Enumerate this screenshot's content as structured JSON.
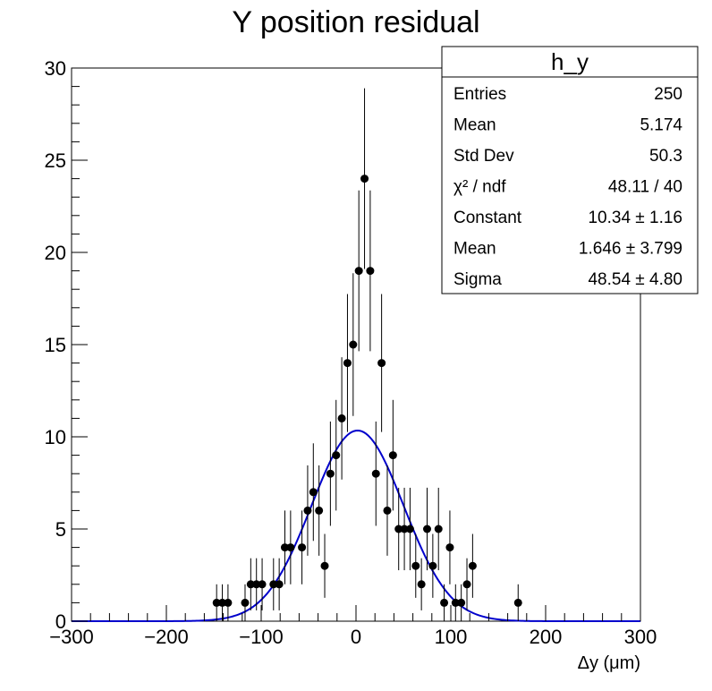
{
  "chart_data": {
    "type": "scatter",
    "title": "Y position residual",
    "xlabel": "Δy (μm)",
    "ylabel": "",
    "xlim": [
      -300,
      300
    ],
    "ylim": [
      0,
      30
    ],
    "x_ticks": [
      -300,
      -200,
      -100,
      0,
      100,
      200,
      300
    ],
    "x_tick_labels": [
      "−300",
      "−200",
      "−100",
      "0",
      "100",
      "200",
      "300"
    ],
    "y_ticks": [
      0,
      5,
      10,
      15,
      20,
      25,
      30
    ],
    "y_tick_labels": [
      "0",
      "5",
      "10",
      "15",
      "20",
      "25",
      "30"
    ],
    "grid": false,
    "legend": "none",
    "colors": {
      "points": "#000000",
      "fit": "#0000cc",
      "frame": "#000000"
    },
    "series": [
      {
        "kind": "points-with-errors",
        "x": [
          -147,
          -141,
          -135,
          -117,
          -111,
          -105,
          -99,
          -87,
          -81,
          -75,
          -69,
          -57,
          -51,
          -45,
          -39,
          -33,
          -27,
          -21,
          -15,
          -9,
          -3,
          3,
          9,
          15,
          21,
          27,
          33,
          39,
          45,
          51,
          57,
          63,
          69,
          75,
          81,
          87,
          93,
          99,
          105,
          111,
          117,
          123,
          171
        ],
        "y": [
          1,
          1,
          1,
          1,
          2,
          2,
          2,
          2,
          2,
          4,
          4,
          4,
          6,
          7,
          6,
          3,
          8,
          9,
          11,
          14,
          15,
          19,
          24,
          19,
          8,
          14,
          6,
          9,
          5,
          5,
          5,
          3,
          2,
          5,
          3,
          5,
          1,
          4,
          1,
          1,
          2,
          3,
          1
        ]
      },
      {
        "kind": "gaussian-fit",
        "constant": 10.34,
        "mean": 1.646,
        "sigma": 48.54
      }
    ]
  },
  "stats": {
    "name": "h_y",
    "rows": [
      {
        "label": "Entries",
        "value": "250"
      },
      {
        "label": "Mean",
        "value": "5.174"
      },
      {
        "label": "Std Dev",
        "value": "50.3"
      },
      {
        "label": "χ² / ndf",
        "value": "48.11 / 40"
      },
      {
        "label": "Constant",
        "value": "10.34 ± 1.16"
      },
      {
        "label": "Mean",
        "value": "1.646 ± 3.799"
      },
      {
        "label": "Sigma",
        "value": "48.54 ± 4.80"
      }
    ]
  }
}
